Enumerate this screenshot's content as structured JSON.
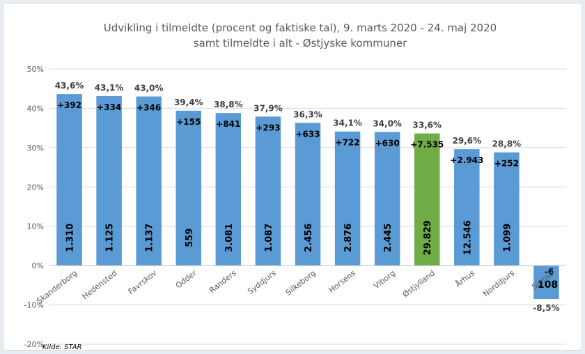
{
  "chart_data": {
    "type": "bar",
    "title_line1": "Udvikling i tilmeldte (procent og faktiske tal), 9. marts 2020 - 24. maj 2020",
    "title_line2": "samt tilmeldte i alt - Østjyske kommuner",
    "source": "Kilde: STAR",
    "ylim": [
      -20,
      50
    ],
    "y_ticks": [
      50,
      40,
      30,
      20,
      10,
      0,
      -10,
      -20
    ],
    "y_tick_labels": [
      "50%",
      "40%",
      "30%",
      "20%",
      "10%",
      "0%",
      "-10%",
      "-20%"
    ],
    "grid": true,
    "categories": [
      "Skanderborg",
      "Hedensted",
      "Favrskov",
      "Odder",
      "Randers",
      "Syddjurs",
      "Silkeborg",
      "Horsens",
      "Viborg",
      "Østjylland",
      "Århus",
      "Norddjurs",
      "Samsø"
    ],
    "values": [
      43.6,
      43.1,
      43.0,
      39.4,
      38.8,
      37.9,
      36.3,
      34.1,
      34.0,
      33.6,
      29.6,
      28.8,
      -8.5
    ],
    "value_labels": [
      "43,6%",
      "43,1%",
      "43,0%",
      "39,4%",
      "38,8%",
      "37,9%",
      "36,3%",
      "34,1%",
      "34,0%",
      "33,6%",
      "29,6%",
      "28,8%",
      "-8,5%"
    ],
    "change_labels": [
      "+392",
      "+334",
      "+346",
      "+155",
      "+841",
      "+293",
      "+633",
      "+722",
      "+630",
      "+7.535",
      "+2.943",
      "+252",
      "-6"
    ],
    "total_labels": [
      "1.310",
      "1.125",
      "1.137",
      "559",
      "3.081",
      "1.087",
      "2.456",
      "2.876",
      "2.445",
      "29.829",
      "12.546",
      "1.099",
      "108"
    ],
    "colors": [
      "#5b9bd5",
      "#5b9bd5",
      "#5b9bd5",
      "#5b9bd5",
      "#5b9bd5",
      "#5b9bd5",
      "#5b9bd5",
      "#5b9bd5",
      "#5b9bd5",
      "#70ad47",
      "#5b9bd5",
      "#5b9bd5",
      "#5b9bd5"
    ]
  }
}
